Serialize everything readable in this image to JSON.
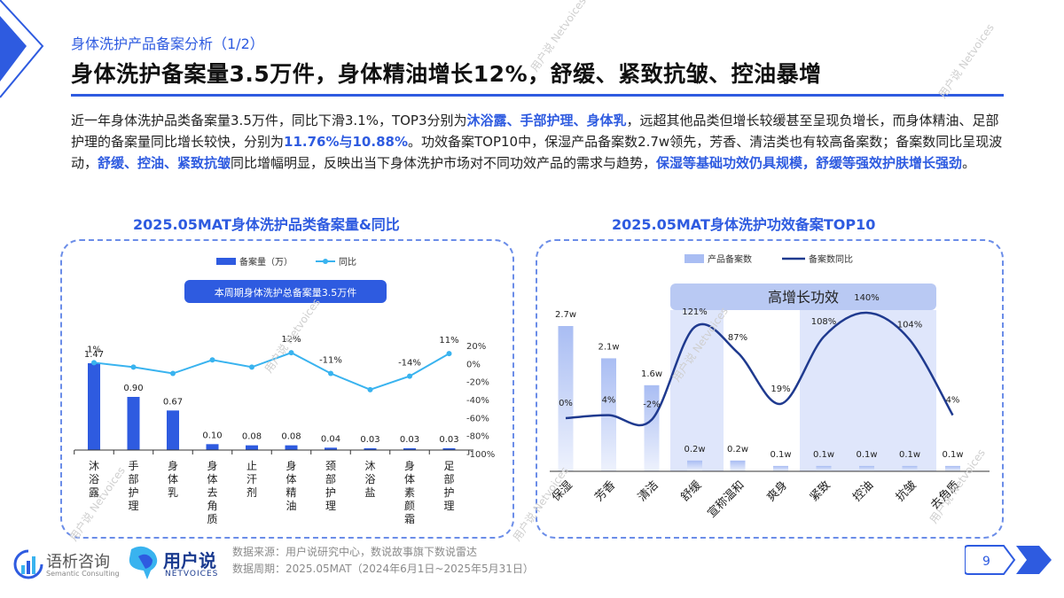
{
  "header": {
    "subtitle": "身体洗护产品备案分析（1/2）",
    "title": "身体洗护备案量3.5万件，身体精油增长12%，舒缓、紧致抗皱、控油暴增"
  },
  "paragraph": {
    "p1": "近一年身体洗护品类备案量3.5万件，同比下滑3.1%，TOP3分别为",
    "h1": "沐浴露、手部护理、身体乳",
    "p2": "，远超其他品类但增长较缓甚至呈现负增长，而身体精油、足部护理的备案量同比增长较快，分别为",
    "h2": "11.76%与10.88%",
    "p3": "。功效备案TOP10中，保湿产品备案数2.7w领先，芳香、清洁类也有较高备案数；备案数同比呈现波动，",
    "h3": "舒缓、控油、紧致抗皱",
    "p4": "同比增幅明显，反映出当下身体洗护市场对不同功效产品的需求与趋势，",
    "h4": "保湿等基础功效仍具规模，舒缓等强效护肤增长强劲",
    "p5": "。"
  },
  "chart_data": [
    {
      "type": "bar",
      "title": "2025.05MAT身体洗护品类备案量&同比",
      "legend": {
        "bar_label": "备案量（万）",
        "line_label": "同比",
        "placement": "top"
      },
      "callout": "本周期身体洗护总备案量3.5万件",
      "categories": [
        "沐浴露",
        "手部护理",
        "身体乳",
        "身体去角质",
        "止汗剂",
        "身体精油",
        "颈部护理",
        "沐浴盐",
        "身体素颜霜",
        "足部护理"
      ],
      "series": [
        {
          "name": "备案量（万）",
          "type": "bar",
          "values": [
            1.47,
            0.9,
            0.67,
            0.1,
            0.08,
            0.08,
            0.04,
            0.03,
            0.03,
            0.03
          ],
          "labels": [
            "1.47",
            "0.90",
            "0.67",
            "0.10",
            "0.08",
            "0.08",
            "0.04",
            "0.03",
            "0.03",
            "0.03"
          ]
        },
        {
          "name": "同比",
          "type": "line",
          "values": [
            1,
            -4,
            -11,
            4,
            -4,
            12,
            -11,
            -29,
            -14,
            11
          ],
          "labels": [
            "1%",
            "",
            "",
            "",
            "",
            "12%",
            "-11%",
            "",
            "-14%",
            "11%"
          ]
        }
      ],
      "y2_ticks": [
        "20%",
        "0%",
        "-20%",
        "-40%",
        "-60%",
        "-80%",
        "-100%"
      ],
      "y2lim": [
        -100,
        20
      ],
      "colors": {
        "bar": "#2e5be0",
        "line": "#39b3ef"
      }
    },
    {
      "type": "bar",
      "title": "2025.05MAT身体洗护功效备案TOP10",
      "legend": {
        "bar_label": "产品备案数",
        "line_label": "备案数同比",
        "placement": "top"
      },
      "highlight_label": "高增长功效",
      "categories": [
        "保湿",
        "芳香",
        "清洁",
        "舒缓",
        "宣称温和",
        "爽身",
        "紧致",
        "控油",
        "抗皱",
        "去角质"
      ],
      "series": [
        {
          "name": "产品备案数",
          "type": "bar",
          "values": [
            2.7,
            2.1,
            1.6,
            0.2,
            0.2,
            0.1,
            0.1,
            0.1,
            0.1,
            0.1
          ],
          "labels": [
            "2.7w",
            "2.1w",
            "1.6w",
            "0.2w",
            "0.2w",
            "0.1w",
            "0.1w",
            "0.1w",
            "0.1w",
            "0.1w"
          ]
        },
        {
          "name": "备案数同比",
          "type": "line",
          "values": [
            0,
            4,
            -2,
            121,
            87,
            19,
            108,
            140,
            104,
            4
          ],
          "labels": [
            "0%",
            "4%",
            "-2%",
            "121%",
            "87%",
            "19%",
            "108%",
            "140%",
            "104%",
            "4%"
          ]
        }
      ],
      "colors": {
        "bar": "#a9bdf3",
        "line": "#1f3a8f",
        "highlight": "#dfe6fb"
      }
    }
  ],
  "footer": {
    "source": "数据来源：用户说研究中心，数说故事旗下数说雷达",
    "period": "数据周期：2025.05MAT（2024年6月1日~2025年5月31日）",
    "page_number": "9",
    "logo1_cn": "语析咨询",
    "logo1_en": "Semantic Consulting",
    "logo2_cn": "用户说",
    "logo2_en": "NETVOICES"
  }
}
